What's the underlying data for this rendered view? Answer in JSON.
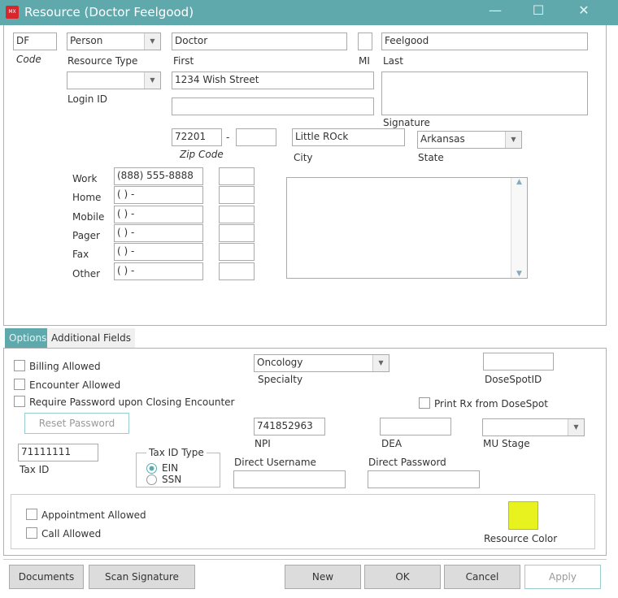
{
  "window": {
    "title": "Resource (Doctor Feelgood)",
    "logo": "MX",
    "minimize": "—",
    "maximize": "☐",
    "close": "✕"
  },
  "person": {
    "code": "DF",
    "code_label": "Code",
    "resource_type": "Person",
    "resource_type_label": "Resource Type",
    "login_id": "",
    "login_id_label": "Login ID",
    "first": "Doctor",
    "first_label": "First",
    "mi": "",
    "mi_label": "MI",
    "last": "Feelgood",
    "last_label": "Last",
    "signature_label": "Signature",
    "address1": "1234 Wish Street",
    "address2": "",
    "zip": "72201",
    "zip_ext": "",
    "zip_sep": "-",
    "zip_label": "Zip Code",
    "city": "Little ROck",
    "city_label": "City",
    "state": "Arkansas",
    "state_label": "State"
  },
  "phones": [
    {
      "label": "Work",
      "value": "(888) 555-8888",
      "ext": ""
    },
    {
      "label": "Home",
      "value": "(  )    -",
      "ext": ""
    },
    {
      "label": "Mobile",
      "value": "(  )    -",
      "ext": ""
    },
    {
      "label": "Pager",
      "value": "(  )    -",
      "ext": ""
    },
    {
      "label": "Fax",
      "value": "(  )    -",
      "ext": ""
    },
    {
      "label": "Other",
      "value": "(  )    -",
      "ext": ""
    }
  ],
  "tabs": [
    {
      "label": "Options",
      "active": true
    },
    {
      "label": "Additional Fields",
      "active": false
    }
  ],
  "options": {
    "billing": "Billing Allowed",
    "encounter": "Encounter Allowed",
    "require_pw": "Require Password upon Closing Encounter",
    "reset_pw": "Reset Password",
    "tax_id": "71111111",
    "tax_id_label": "Tax ID",
    "tax_type_label": "Tax ID Type",
    "ein": "EIN",
    "ssn": "SSN",
    "tax_type_selected": "EIN",
    "specialty": "Oncology",
    "specialty_label": "Specialty",
    "dosespot_id": "",
    "dosespot_label": "DoseSpotID",
    "print_rx": "Print Rx from DoseSpot",
    "npi": "741852963",
    "npi_label": "NPI",
    "dea": "",
    "dea_label": "DEA",
    "mu_stage": "",
    "mu_label": "MU Stage",
    "direct_user": "",
    "direct_user_label": "Direct Username",
    "direct_pw": "",
    "direct_pw_label": "Direct Password",
    "appointment": "Appointment Allowed",
    "call": "Call Allowed",
    "resource_color_label": "Resource Color",
    "resource_color": "#e8f21f"
  },
  "buttons": {
    "documents": "Documents",
    "scan": "Scan Signature",
    "new": "New",
    "ok": "OK",
    "cancel": "Cancel",
    "apply": "Apply"
  }
}
